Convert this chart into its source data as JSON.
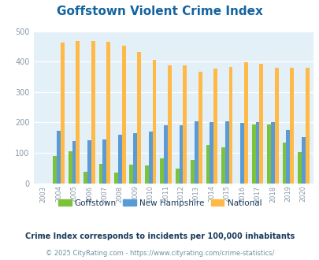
{
  "title": "Goffstown Violent Crime Index",
  "years": [
    "2003",
    "2004",
    "2005",
    "2006",
    "2007",
    "2008",
    "2009",
    "2010",
    "2011",
    "2012",
    "2013",
    "2014",
    "2015",
    "2016",
    "2017",
    "2018",
    "2019",
    "2020"
  ],
  "goffstown": [
    0,
    90,
    106,
    37,
    63,
    36,
    62,
    59,
    82,
    49,
    76,
    126,
    119,
    0,
    193,
    193,
    135,
    102
  ],
  "nh": [
    0,
    172,
    138,
    142,
    143,
    160,
    164,
    169,
    191,
    191,
    204,
    200,
    203,
    198,
    200,
    201,
    175,
    153
  ],
  "national": [
    0,
    463,
    469,
    469,
    465,
    453,
    431,
    405,
    388,
    387,
    368,
    378,
    383,
    397,
    394,
    381,
    379,
    379
  ],
  "goffstown_color": "#7cc23a",
  "nh_color": "#5b9bd5",
  "national_color": "#ffb946",
  "plot_bg": "#e4f0f8",
  "ylim": [
    0,
    500
  ],
  "yticks": [
    0,
    100,
    200,
    300,
    400,
    500
  ],
  "subtitle": "Crime Index corresponds to incidents per 100,000 inhabitants",
  "footer": "© 2025 CityRating.com - https://www.cityrating.com/crime-statistics/",
  "legend_labels": [
    "Goffstown",
    "New Hampshire",
    "National"
  ],
  "title_color": "#1464a0",
  "subtitle_color": "#1a3a5c",
  "footer_color": "#7090a0",
  "tick_color": "#8899aa"
}
